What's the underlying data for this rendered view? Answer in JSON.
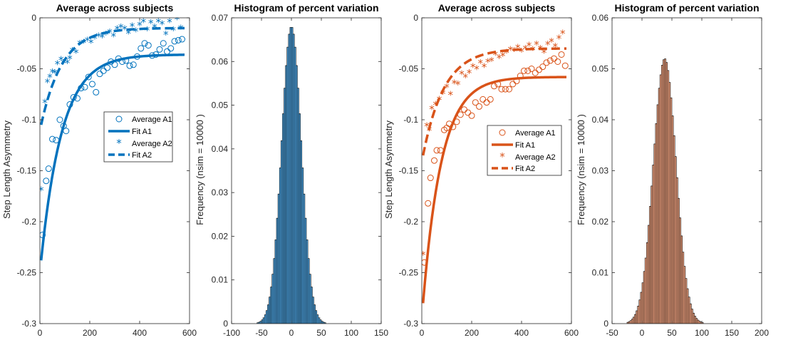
{
  "chart_data": [
    {
      "type": "scatter",
      "title": "Average across subjects",
      "xlabel": "",
      "ylabel": "Step Length Asymmetry",
      "xlim": [
        0,
        600
      ],
      "ylim": [
        -0.3,
        0
      ],
      "xticks": [
        "0",
        "200",
        "400",
        "600"
      ],
      "yticks": [
        "-0.3",
        "-0.25",
        "-0.2",
        "-0.15",
        "-0.1",
        "-0.05",
        "0"
      ],
      "color": "#0072BD",
      "legend_position": "right",
      "series": [
        {
          "name": "Average A1",
          "style": "circle",
          "points": [
            [
              10,
              -0.213
            ],
            [
              25,
              -0.16
            ],
            [
              35,
              -0.148
            ],
            [
              50,
              -0.119
            ],
            [
              65,
              -0.12
            ],
            [
              80,
              -0.1
            ],
            [
              95,
              -0.106
            ],
            [
              105,
              -0.111
            ],
            [
              120,
              -0.085
            ],
            [
              135,
              -0.078
            ],
            [
              150,
              -0.079
            ],
            [
              165,
              -0.069
            ],
            [
              180,
              -0.068
            ],
            [
              195,
              -0.058
            ],
            [
              210,
              -0.065
            ],
            [
              225,
              -0.073
            ],
            [
              240,
              -0.055
            ],
            [
              255,
              -0.052
            ],
            [
              270,
              -0.049
            ],
            [
              285,
              -0.043
            ],
            [
              300,
              -0.046
            ],
            [
              315,
              -0.04
            ],
            [
              330,
              -0.043
            ],
            [
              345,
              -0.042
            ],
            [
              360,
              -0.047
            ],
            [
              375,
              -0.046
            ],
            [
              390,
              -0.038
            ],
            [
              405,
              -0.03
            ],
            [
              420,
              -0.025
            ],
            [
              435,
              -0.027
            ],
            [
              450,
              -0.037
            ],
            [
              465,
              -0.036
            ],
            [
              480,
              -0.031
            ],
            [
              495,
              -0.025
            ],
            [
              510,
              -0.033
            ],
            [
              525,
              -0.03
            ],
            [
              540,
              -0.023
            ],
            [
              555,
              -0.022
            ],
            [
              570,
              -0.021
            ]
          ]
        },
        {
          "name": "Fit A1",
          "style": "solid",
          "fit": {
            "asymptote": -0.036,
            "start": -0.238,
            "tau": 85,
            "x0": 5,
            "x1": 580
          }
        },
        {
          "name": "Average A2",
          "style": "asterisk",
          "points": [
            [
              5,
              -0.169
            ],
            [
              20,
              -0.083
            ],
            [
              30,
              -0.063
            ],
            [
              40,
              -0.058
            ],
            [
              50,
              -0.053
            ],
            [
              60,
              -0.054
            ],
            [
              70,
              -0.045
            ],
            [
              85,
              -0.041
            ],
            [
              95,
              -0.044
            ],
            [
              110,
              -0.044
            ],
            [
              120,
              -0.04
            ],
            [
              130,
              -0.032
            ],
            [
              145,
              -0.034
            ],
            [
              160,
              -0.025
            ],
            [
              175,
              -0.024
            ],
            [
              190,
              -0.022
            ],
            [
              205,
              -0.024
            ],
            [
              220,
              -0.02
            ],
            [
              235,
              -0.018
            ],
            [
              250,
              -0.019
            ],
            [
              265,
              -0.016
            ],
            [
              280,
              -0.014
            ],
            [
              295,
              -0.018
            ],
            [
              310,
              -0.011
            ],
            [
              325,
              -0.009
            ],
            [
              340,
              -0.011
            ],
            [
              355,
              -0.015
            ],
            [
              370,
              -0.008
            ],
            [
              385,
              -0.013
            ],
            [
              400,
              -0.007
            ],
            [
              415,
              -0.004
            ],
            [
              430,
              -0.012
            ],
            [
              445,
              -0.005
            ],
            [
              460,
              -0.009
            ],
            [
              475,
              -0.004
            ],
            [
              490,
              -0.006
            ],
            [
              505,
              -0.016
            ],
            [
              520,
              -0.004
            ],
            [
              535,
              -0.012
            ],
            [
              550,
              -0.001
            ],
            [
              565,
              -0.01
            ]
          ]
        },
        {
          "name": "Fit A2",
          "style": "dashed",
          "fit": {
            "asymptote": -0.01,
            "start": -0.105,
            "tau": 85,
            "x0": 5,
            "x1": 580
          }
        }
      ]
    },
    {
      "type": "bar",
      "title": "Histogram of percent variation",
      "xlabel": "",
      "ylabel": "Frequency (nsim = 10000 )",
      "xlim": [
        -100,
        150
      ],
      "ylim": [
        0,
        0.07
      ],
      "xticks": [
        "-100",
        "-50",
        "0",
        "50",
        "100",
        "150"
      ],
      "yticks": [
        "0",
        "0.01",
        "0.02",
        "0.03",
        "0.04",
        "0.05",
        "0.06",
        "0.07"
      ],
      "bin_width": 2.5,
      "mean": 0,
      "sd": 16.5,
      "peak": 0.068,
      "color": "#4DA3E0"
    },
    {
      "type": "scatter",
      "title": "Average across subjects",
      "xlabel": "",
      "ylabel": "Step Length Asymmetry",
      "xlim": [
        0,
        600
      ],
      "ylim": [
        -0.3,
        0
      ],
      "xticks": [
        "0",
        "200",
        "400",
        "600"
      ],
      "yticks": [
        "-0.3",
        "-0.25",
        "-0.2",
        "-0.15",
        "-0.1",
        "-0.05",
        "0"
      ],
      "color": "#D95319",
      "legend_position": "right",
      "series": [
        {
          "name": "Average A1",
          "style": "circle",
          "points": [
            [
              10,
              -0.24
            ],
            [
              25,
              -0.182
            ],
            [
              35,
              -0.157
            ],
            [
              50,
              -0.14
            ],
            [
              60,
              -0.13
            ],
            [
              75,
              -0.13
            ],
            [
              90,
              -0.11
            ],
            [
              100,
              -0.108
            ],
            [
              110,
              -0.104
            ],
            [
              125,
              -0.107
            ],
            [
              140,
              -0.102
            ],
            [
              155,
              -0.095
            ],
            [
              170,
              -0.09
            ],
            [
              185,
              -0.093
            ],
            [
              200,
              -0.096
            ],
            [
              215,
              -0.083
            ],
            [
              230,
              -0.087
            ],
            [
              245,
              -0.08
            ],
            [
              260,
              -0.083
            ],
            [
              275,
              -0.08
            ],
            [
              290,
              -0.067
            ],
            [
              305,
              -0.065
            ],
            [
              320,
              -0.07
            ],
            [
              335,
              -0.07
            ],
            [
              350,
              -0.07
            ],
            [
              365,
              -0.065
            ],
            [
              380,
              -0.062
            ],
            [
              395,
              -0.057
            ],
            [
              410,
              -0.052
            ],
            [
              425,
              -0.052
            ],
            [
              440,
              -0.05
            ],
            [
              455,
              -0.054
            ],
            [
              470,
              -0.051
            ],
            [
              485,
              -0.048
            ],
            [
              500,
              -0.044
            ],
            [
              515,
              -0.042
            ],
            [
              530,
              -0.04
            ],
            [
              545,
              -0.043
            ],
            [
              560,
              -0.036
            ],
            [
              575,
              -0.047
            ]
          ]
        },
        {
          "name": "Fit A1",
          "style": "solid",
          "fit": {
            "asymptote": -0.058,
            "start": -0.28,
            "tau": 75,
            "x0": 5,
            "x1": 580
          }
        },
        {
          "name": "Average A2",
          "style": "asterisk",
          "points": [
            [
              5,
              -0.232
            ],
            [
              20,
              -0.106
            ],
            [
              30,
              -0.11
            ],
            [
              40,
              -0.089
            ],
            [
              55,
              -0.085
            ],
            [
              70,
              -0.08
            ],
            [
              85,
              -0.074
            ],
            [
              100,
              -0.068
            ],
            [
              115,
              -0.075
            ],
            [
              130,
              -0.064
            ],
            [
              145,
              -0.065
            ],
            [
              160,
              -0.055
            ],
            [
              175,
              -0.058
            ],
            [
              190,
              -0.054
            ],
            [
              205,
              -0.048
            ],
            [
              220,
              -0.05
            ],
            [
              235,
              -0.044
            ],
            [
              250,
              -0.048
            ],
            [
              265,
              -0.043
            ],
            [
              280,
              -0.042
            ],
            [
              295,
              -0.036
            ],
            [
              310,
              -0.039
            ],
            [
              325,
              -0.037
            ],
            [
              340,
              -0.034
            ],
            [
              355,
              -0.031
            ],
            [
              370,
              -0.032
            ],
            [
              385,
              -0.029
            ],
            [
              400,
              -0.033
            ],
            [
              415,
              -0.03
            ],
            [
              430,
              -0.027
            ],
            [
              445,
              -0.031
            ],
            [
              460,
              -0.026
            ],
            [
              475,
              -0.03
            ],
            [
              490,
              -0.034
            ],
            [
              505,
              -0.026
            ],
            [
              520,
              -0.023
            ],
            [
              535,
              -0.028
            ],
            [
              550,
              -0.02
            ],
            [
              565,
              -0.015
            ]
          ]
        },
        {
          "name": "Fit A2",
          "style": "dashed",
          "fit": {
            "asymptote": -0.03,
            "start": -0.135,
            "tau": 85,
            "x0": 5,
            "x1": 580
          }
        }
      ]
    },
    {
      "type": "bar",
      "title": "Histogram of percent variation",
      "xlabel": "",
      "ylabel": "Frequency (nsim = 10000 )",
      "xlim": [
        -50,
        200
      ],
      "ylim": [
        0,
        0.06
      ],
      "xticks": [
        "-50",
        "0",
        "50",
        "100",
        "150",
        "200"
      ],
      "yticks": [
        "0",
        "0.01",
        "0.02",
        "0.03",
        "0.04",
        "0.05",
        "0.06"
      ],
      "bin_width": 2.5,
      "mean": 38,
      "sd": 19,
      "peak": 0.052,
      "color": "#F4A582"
    }
  ]
}
